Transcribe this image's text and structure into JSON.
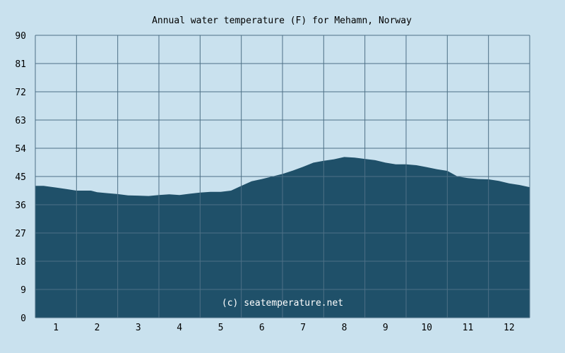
{
  "chart_data": {
    "type": "area",
    "title": "Annual water temperature (F) for Mehamn, Norway",
    "xlabel": "",
    "ylabel": "",
    "ylim": [
      0,
      90
    ],
    "yticks": [
      0,
      9,
      18,
      27,
      36,
      45,
      54,
      63,
      72,
      81,
      90
    ],
    "xlim": [
      0.5,
      12.5
    ],
    "xticks": [
      1,
      2,
      3,
      4,
      5,
      6,
      7,
      8,
      9,
      10,
      11,
      12
    ],
    "grid": true,
    "series": [
      {
        "x": [
          0.5,
          0.7,
          1.0,
          1.25,
          1.5,
          1.85,
          2.0,
          2.25,
          2.5,
          2.75,
          3.0,
          3.25,
          3.5,
          3.75,
          4.0,
          4.25,
          4.5,
          4.75,
          5.0,
          5.25,
          5.5,
          5.75,
          6.0,
          6.25,
          6.5,
          6.75,
          7.0,
          7.25,
          7.5,
          7.75,
          8.0,
          8.25,
          8.5,
          8.75,
          9.0,
          9.25,
          9.5,
          9.75,
          10.0,
          10.25,
          10.5,
          10.75,
          11.0,
          11.25,
          11.5,
          11.75,
          12.0,
          12.25,
          12.5
        ],
        "values": [
          42,
          42,
          41.5,
          41,
          40.5,
          40.5,
          40,
          39.7,
          39.4,
          39,
          38.9,
          38.8,
          39.1,
          39.3,
          39.1,
          39.5,
          39.9,
          40.1,
          40.1,
          40.5,
          42,
          43.5,
          44.2,
          45,
          45.8,
          46.9,
          48.1,
          49.4,
          50,
          50.5,
          51.2,
          51,
          50.6,
          50.2,
          49.4,
          48.9,
          48.9,
          48.6,
          48,
          47.3,
          46.8,
          45,
          44.5,
          44.2,
          44.1,
          43.6,
          42.8,
          42.3,
          41.6
        ]
      }
    ],
    "colors": {
      "area": "#1f5069",
      "grid": "#4d7086",
      "background": "#c9e1ee",
      "plot_bg": "#c9e1ee"
    },
    "watermark": "(c) seatemperature.net"
  }
}
